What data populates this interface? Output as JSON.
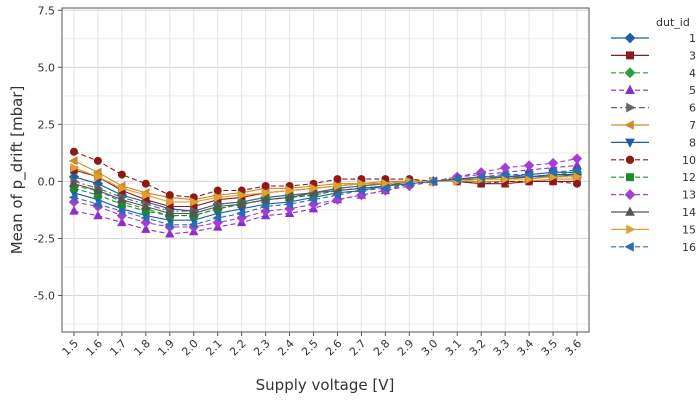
{
  "chart_data": {
    "type": "line",
    "xlabel": "Supply voltage [V]",
    "ylabel": "Mean of p_drift [mbar]",
    "x": [
      1.5,
      1.6,
      1.7,
      1.8,
      1.9,
      2.0,
      2.1,
      2.2,
      2.3,
      2.4,
      2.5,
      2.6,
      2.7,
      2.8,
      2.9,
      3.0,
      3.1,
      3.2,
      3.3,
      3.4,
      3.5,
      3.6
    ],
    "x_tick_labels": [
      "1.5",
      "1.6",
      "1.7",
      "1.8",
      "1.9",
      "2.0",
      "2.1",
      "2.2",
      "2.3",
      "2.4",
      "2.5",
      "2.6",
      "2.7",
      "2.8",
      "2.9",
      "3.0",
      "3.1",
      "3.2",
      "3.3",
      "3.4",
      "3.5",
      "3.6"
    ],
    "y_ticks": [
      -5.0,
      -2.5,
      0.0,
      2.5,
      5.0,
      7.5
    ],
    "y_tick_labels": [
      "-5.0",
      "-2.5",
      "0.0",
      "2.5",
      "5.0",
      "7.5"
    ],
    "ylim": [
      -6.6,
      7.6
    ],
    "xlim": [
      1.45,
      3.65
    ],
    "grid": true,
    "legend": {
      "title": "dut_id",
      "placement": "right"
    },
    "series": [
      {
        "name": "1",
        "color": "#1f5fa8",
        "marker": "diamond",
        "dash": "solid",
        "values": [
          0.2,
          -0.1,
          -0.6,
          -0.9,
          -1.2,
          -1.3,
          -1.0,
          -0.9,
          -0.7,
          -0.6,
          -0.5,
          -0.3,
          -0.2,
          -0.1,
          0.0,
          0.0,
          0.1,
          0.1,
          0.1,
          0.2,
          0.2,
          0.3
        ]
      },
      {
        "name": "3",
        "color": "#8b1a1a",
        "marker": "square",
        "dash": "solid",
        "values": [
          0.5,
          0.2,
          -0.4,
          -0.8,
          -1.1,
          -1.1,
          -0.8,
          -0.7,
          -0.5,
          -0.4,
          -0.3,
          -0.2,
          -0.1,
          -0.1,
          0.0,
          0.0,
          0.0,
          -0.1,
          -0.1,
          0.0,
          0.0,
          0.0
        ]
      },
      {
        "name": "4",
        "color": "#2e9e44",
        "marker": "diamond",
        "dash": "dashed",
        "values": [
          -0.2,
          -0.4,
          -0.9,
          -1.2,
          -1.5,
          -1.5,
          -1.2,
          -1.0,
          -0.8,
          -0.7,
          -0.6,
          -0.4,
          -0.3,
          -0.2,
          0.0,
          0.0,
          0.1,
          0.1,
          0.2,
          0.2,
          0.3,
          0.4
        ]
      },
      {
        "name": "5",
        "color": "#8b2fc9",
        "marker": "triangle",
        "dash": "dashed",
        "values": [
          -1.3,
          -1.5,
          -1.8,
          -2.1,
          -2.3,
          -2.2,
          -2.0,
          -1.8,
          -1.5,
          -1.4,
          -1.2,
          -0.8,
          -0.6,
          -0.4,
          -0.1,
          0.0,
          0.2,
          0.3,
          0.4,
          0.5,
          0.6,
          0.7
        ]
      },
      {
        "name": "6",
        "color": "#666666",
        "marker": "tri-right",
        "dash": "dashdot",
        "values": [
          0.0,
          -0.3,
          -0.7,
          -1.0,
          -1.3,
          -1.3,
          -1.0,
          -0.9,
          -0.7,
          -0.6,
          -0.5,
          -0.3,
          -0.2,
          -0.1,
          0.0,
          0.0,
          0.1,
          0.1,
          0.1,
          0.2,
          0.2,
          0.2
        ]
      },
      {
        "name": "7",
        "color": "#d4882a",
        "marker": "tri-left",
        "dash": "solid",
        "values": [
          0.9,
          0.4,
          -0.2,
          -0.5,
          -0.7,
          -0.8,
          -0.6,
          -0.5,
          -0.3,
          -0.3,
          -0.2,
          -0.1,
          -0.1,
          0.0,
          0.0,
          0.0,
          0.0,
          0.0,
          0.0,
          0.0,
          0.1,
          0.1
        ]
      },
      {
        "name": "8",
        "color": "#1f5fa8",
        "marker": "tri-down",
        "dash": "solid",
        "values": [
          -0.5,
          -0.8,
          -1.2,
          -1.5,
          -1.7,
          -1.7,
          -1.4,
          -1.2,
          -1.0,
          -0.9,
          -0.7,
          -0.5,
          -0.4,
          -0.2,
          -0.1,
          0.0,
          0.1,
          0.2,
          0.2,
          0.3,
          0.4,
          0.4
        ]
      },
      {
        "name": "10",
        "color": "#8b1a1a",
        "marker": "circle",
        "dash": "dashed",
        "values": [
          1.3,
          0.9,
          0.3,
          -0.1,
          -0.6,
          -0.7,
          -0.4,
          -0.4,
          -0.2,
          -0.2,
          -0.1,
          0.1,
          0.1,
          0.1,
          0.1,
          0.0,
          0.0,
          -0.1,
          0.0,
          0.0,
          0.0,
          -0.1
        ]
      },
      {
        "name": "12",
        "color": "#1e8a2e",
        "marker": "square",
        "dash": "dashed",
        "values": [
          -0.3,
          -0.6,
          -1.0,
          -1.3,
          -1.5,
          -1.5,
          -1.2,
          -1.0,
          -0.8,
          -0.7,
          -0.6,
          -0.4,
          -0.3,
          -0.2,
          -0.1,
          0.0,
          0.1,
          0.1,
          0.2,
          0.2,
          0.3,
          0.3
        ]
      },
      {
        "name": "13",
        "color": "#a23fd0",
        "marker": "diamond",
        "dash": "dashed",
        "values": [
          -0.9,
          -1.1,
          -1.5,
          -1.8,
          -2.0,
          -2.0,
          -1.8,
          -1.6,
          -1.3,
          -1.2,
          -1.0,
          -0.8,
          -0.6,
          -0.4,
          -0.2,
          0.0,
          0.2,
          0.4,
          0.6,
          0.7,
          0.8,
          1.0
        ]
      },
      {
        "name": "14",
        "color": "#555555",
        "marker": "triangle",
        "dash": "solid",
        "values": [
          -0.1,
          -0.4,
          -0.8,
          -1.1,
          -1.4,
          -1.4,
          -1.1,
          -1.0,
          -0.8,
          -0.7,
          -0.5,
          -0.4,
          -0.3,
          -0.2,
          0.0,
          0.0,
          0.1,
          0.1,
          0.2,
          0.2,
          0.3,
          0.3
        ]
      },
      {
        "name": "15",
        "color": "#e0a030",
        "marker": "tri-right",
        "dash": "solid",
        "values": [
          0.6,
          0.2,
          -0.3,
          -0.6,
          -0.9,
          -0.9,
          -0.7,
          -0.6,
          -0.5,
          -0.4,
          -0.3,
          -0.2,
          -0.1,
          -0.1,
          0.0,
          0.0,
          0.0,
          0.1,
          0.1,
          0.1,
          0.2,
          0.2
        ]
      },
      {
        "name": "16",
        "color": "#2b6cb0",
        "marker": "tri-left",
        "dash": "dashed",
        "values": [
          -0.7,
          -1.0,
          -1.3,
          -1.6,
          -1.9,
          -1.9,
          -1.6,
          -1.4,
          -1.1,
          -1.0,
          -0.8,
          -0.6,
          -0.4,
          -0.3,
          -0.1,
          0.0,
          0.1,
          0.2,
          0.3,
          0.3,
          0.4,
          0.5
        ]
      }
    ]
  }
}
